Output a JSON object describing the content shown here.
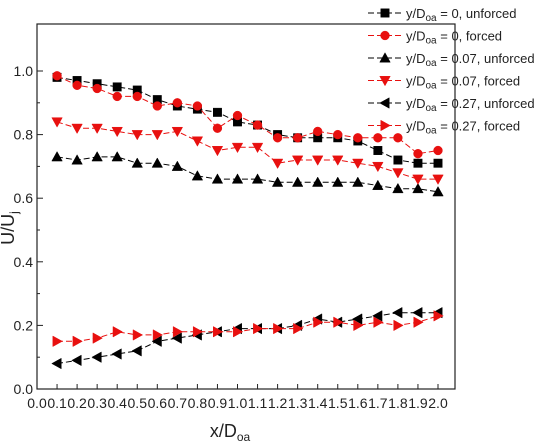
{
  "chart_data": {
    "type": "line",
    "title": "",
    "xlabel": {
      "main": "x/D",
      "sub": "oa"
    },
    "ylabel": {
      "main": "U/U",
      "sub": "j"
    },
    "xlim": [
      0,
      2.1
    ],
    "ylim": [
      0,
      1.05
    ],
    "xticks": [
      "0.0",
      "0.1",
      "0.2",
      "0.3",
      "0.4",
      "0.5",
      "0.6",
      "0.7",
      "0.8",
      "0.9",
      "1.0",
      "1.1",
      "1.2",
      "1.3",
      "1.4",
      "1.5",
      "1.6",
      "1.7",
      "1.8",
      "1.9",
      "2.0"
    ],
    "yticks": [
      "0.0",
      "0.2",
      "0.4",
      "0.6",
      "0.8",
      "1.0"
    ],
    "grid": false,
    "legend_position": "top-right",
    "x": [
      0.1,
      0.2,
      0.3,
      0.4,
      0.5,
      0.6,
      0.7,
      0.8,
      0.9,
      1.0,
      1.1,
      1.2,
      1.3,
      1.4,
      1.5,
      1.6,
      1.7,
      1.8,
      1.9,
      2.0
    ],
    "series": [
      {
        "name": "y/D",
        "name_sub": "oa",
        "name_suffix": " = 0, unforced",
        "color": "#000000",
        "marker": "square",
        "values": [
          0.98,
          0.97,
          0.96,
          0.95,
          0.94,
          0.91,
          0.89,
          0.88,
          0.87,
          0.84,
          0.83,
          0.8,
          0.79,
          0.79,
          0.79,
          0.78,
          0.75,
          0.72,
          0.71,
          0.71
        ]
      },
      {
        "name": "y/D",
        "name_sub": "oa",
        "name_suffix": " = 0, forced",
        "color": "#e8100f",
        "marker": "circle",
        "values": [
          0.985,
          0.955,
          0.945,
          0.92,
          0.92,
          0.89,
          0.9,
          0.89,
          0.82,
          0.86,
          0.83,
          0.79,
          0.79,
          0.81,
          0.8,
          0.79,
          0.79,
          0.79,
          0.74,
          0.75
        ]
      },
      {
        "name": "y/D",
        "name_sub": "oa",
        "name_suffix": " = 0.07, unforced",
        "color": "#000000",
        "marker": "triangle-up",
        "values": [
          0.73,
          0.72,
          0.73,
          0.73,
          0.71,
          0.71,
          0.7,
          0.67,
          0.66,
          0.66,
          0.66,
          0.65,
          0.65,
          0.65,
          0.65,
          0.65,
          0.64,
          0.63,
          0.63,
          0.62
        ]
      },
      {
        "name": "y/D",
        "name_sub": "oa",
        "name_suffix": " = 0.07, forced",
        "color": "#e8100f",
        "marker": "triangle-down",
        "values": [
          0.84,
          0.82,
          0.82,
          0.81,
          0.8,
          0.8,
          0.81,
          0.78,
          0.75,
          0.76,
          0.76,
          0.71,
          0.72,
          0.72,
          0.72,
          0.71,
          0.7,
          0.68,
          0.66,
          0.66
        ]
      },
      {
        "name": "y/D",
        "name_sub": "oa",
        "name_suffix": " = 0.27, unforced",
        "color": "#000000",
        "marker": "triangle-left",
        "values": [
          0.08,
          0.09,
          0.1,
          0.11,
          0.12,
          0.15,
          0.16,
          0.17,
          0.18,
          0.19,
          0.19,
          0.19,
          0.2,
          0.22,
          0.21,
          0.22,
          0.23,
          0.24,
          0.24,
          0.24
        ]
      },
      {
        "name": "y/D",
        "name_sub": "oa",
        "name_suffix": " = 0.27, forced",
        "color": "#e8100f",
        "marker": "triangle-right",
        "values": [
          0.15,
          0.15,
          0.16,
          0.18,
          0.17,
          0.17,
          0.18,
          0.18,
          0.18,
          0.18,
          0.19,
          0.19,
          0.19,
          0.21,
          0.21,
          0.2,
          0.21,
          0.2,
          0.21,
          0.23
        ]
      }
    ]
  }
}
